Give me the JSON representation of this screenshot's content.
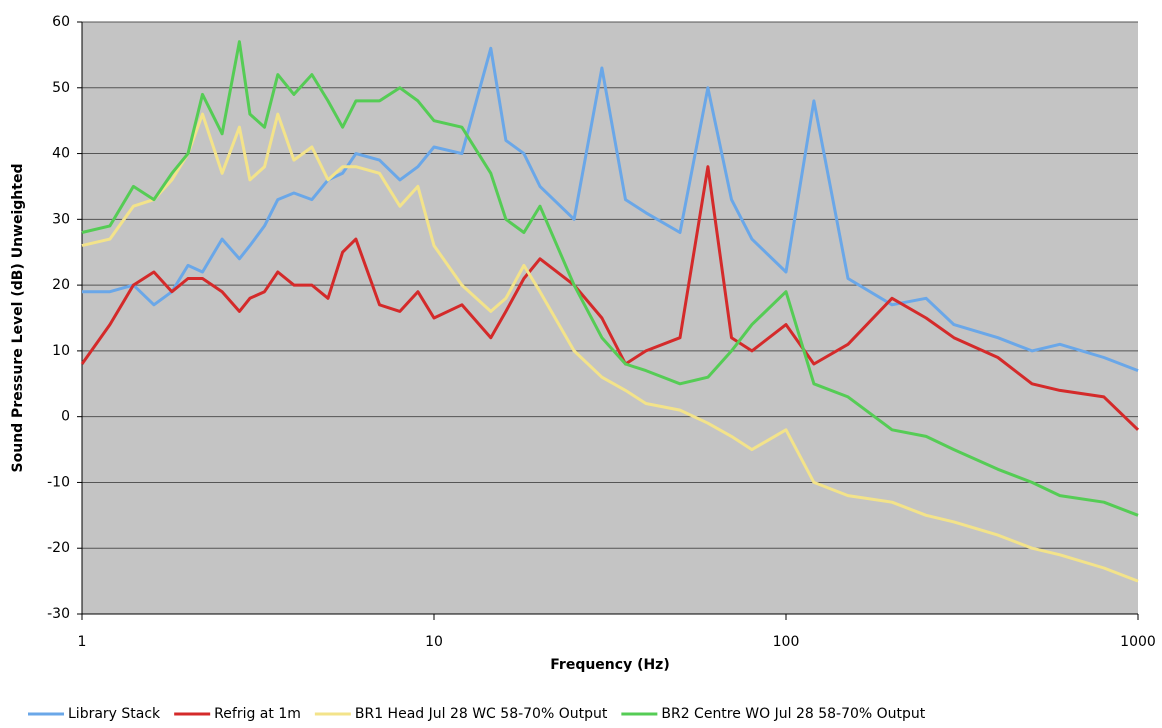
{
  "chart_data": {
    "type": "line",
    "xlabel": "Frequency (Hz)",
    "ylabel": "Sound Pressure Level (dB) Unweighted",
    "xscale": "log",
    "grid": true,
    "legend": "bottom",
    "xlim": [
      1,
      1000
    ],
    "xticks": [
      1,
      10,
      100,
      1000
    ],
    "ylim": [
      -30,
      60
    ],
    "yticks": [
      60,
      50,
      40,
      30,
      20,
      10,
      0,
      -10,
      -20,
      -30
    ],
    "x": [
      1,
      1.2,
      1.4,
      1.6,
      1.8,
      2,
      2.2,
      2.5,
      2.8,
      3,
      3.3,
      3.6,
      4,
      4.5,
      5,
      5.5,
      6,
      7,
      8,
      9,
      10,
      12,
      14.5,
      16,
      18,
      20,
      25,
      30,
      35,
      40,
      50,
      60,
      70,
      80,
      100,
      120,
      150,
      200,
      250,
      300,
      400,
      500,
      600,
      800,
      1000
    ],
    "series": [
      {
        "name": "Library Stack",
        "color": "#6aa7e8",
        "values": [
          19,
          19,
          20,
          17,
          19,
          23,
          22,
          27,
          24,
          26,
          29,
          33,
          34,
          33,
          36,
          37,
          40,
          39,
          36,
          38,
          41,
          40,
          56,
          42,
          40,
          35,
          30,
          53,
          33,
          31,
          28,
          50,
          33,
          27,
          22,
          48,
          21,
          17,
          18,
          14,
          12,
          10,
          11,
          9,
          7
        ]
      },
      {
        "name": "Refrig at 1m",
        "color": "#d42a2a",
        "values": [
          8,
          14,
          20,
          22,
          19,
          21,
          21,
          19,
          16,
          18,
          19,
          22,
          20,
          20,
          18,
          25,
          27,
          17,
          16,
          19,
          15,
          17,
          12,
          16,
          21,
          24,
          20,
          15,
          8,
          10,
          12,
          38,
          12,
          10,
          14,
          8,
          11,
          18,
          15,
          12,
          9,
          5,
          4,
          3,
          -2
        ]
      },
      {
        "name": "BR1 Head Jul 28 WC 58-70% Output",
        "color": "#f3e38a",
        "values": [
          26,
          27,
          32,
          33,
          36,
          40,
          46,
          37,
          44,
          36,
          38,
          46,
          39,
          41,
          36,
          38,
          38,
          37,
          32,
          35,
          26,
          20,
          16,
          18,
          23,
          19,
          10,
          6,
          4,
          2,
          1,
          -1,
          -3,
          -5,
          -2,
          -10,
          -12,
          -13,
          -15,
          -16,
          -18,
          -20,
          -21,
          -23,
          -25
        ]
      },
      {
        "name": "BR2 Centre WO Jul 28 58-70% Output",
        "color": "#55cc55",
        "values": [
          28,
          29,
          35,
          33,
          37,
          40,
          49,
          43,
          57,
          46,
          44,
          52,
          49,
          52,
          48,
          44,
          48,
          48,
          50,
          48,
          45,
          44,
          37,
          30,
          28,
          32,
          20,
          12,
          8,
          7,
          5,
          6,
          10,
          14,
          19,
          5,
          3,
          -2,
          -3,
          -5,
          -8,
          -10,
          -12,
          -13,
          -15
        ]
      }
    ]
  }
}
